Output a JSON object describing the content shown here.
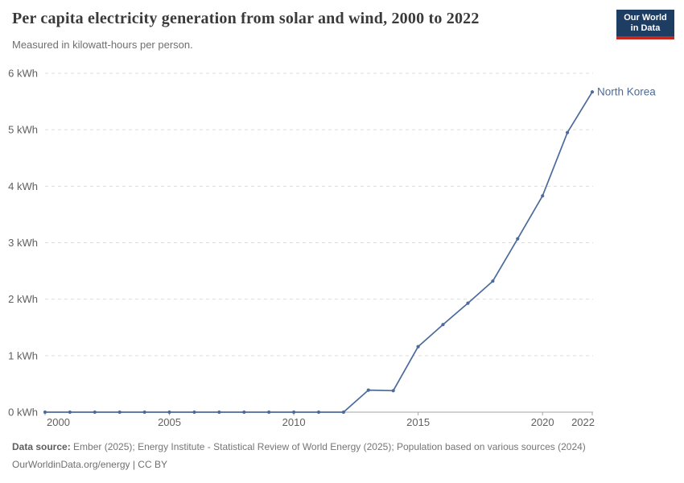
{
  "header": {
    "title": "Per capita electricity generation from solar and wind, 2000 to 2022",
    "subtitle": "Measured in kilowatt-hours per person.",
    "logo": {
      "line1": "Our World",
      "line2": "in Data"
    }
  },
  "chart_data": {
    "type": "line",
    "title": "Per capita electricity generation from solar and wind, 2000 to 2022",
    "xlabel": "",
    "ylabel": "kilowatt-hours per person",
    "xlim": [
      2000,
      2022
    ],
    "ylim": [
      0,
      6
    ],
    "x_ticks": [
      2000,
      2005,
      2010,
      2015,
      2020,
      2022
    ],
    "y_ticks": [
      0,
      1,
      2,
      3,
      4,
      5,
      6
    ],
    "y_tick_suffix": " kWh",
    "grid": "horizontal-dashed",
    "legend_position": "end-of-line-label",
    "series": [
      {
        "name": "North Korea",
        "x": [
          2000,
          2001,
          2002,
          2003,
          2004,
          2005,
          2006,
          2007,
          2008,
          2009,
          2010,
          2011,
          2012,
          2013,
          2014,
          2015,
          2016,
          2017,
          2018,
          2019,
          2020,
          2021,
          2022
        ],
        "values": [
          0,
          0,
          0,
          0,
          0,
          0,
          0,
          0,
          0,
          0,
          0,
          0,
          0,
          0.39,
          0.38,
          1.16,
          1.55,
          1.93,
          2.32,
          3.07,
          3.83,
          4.95,
          5.67
        ]
      }
    ]
  },
  "footer": {
    "data_source_label": "Data source:",
    "data_source_text": " Ember (2025); Energy Institute - Statistical Review of World Energy (2025); Population based on various sources (2024)",
    "line2": "OurWorldinData.org/energy | CC BY"
  },
  "colors": {
    "line": "#4C6A9C",
    "end_label": "#4C6A9C",
    "gridline": "#dcdcdc",
    "axis": "#a5a5a5",
    "tick_text": "#606060",
    "logo_bg": "#1d3d63",
    "logo_red": "#c5281f"
  }
}
